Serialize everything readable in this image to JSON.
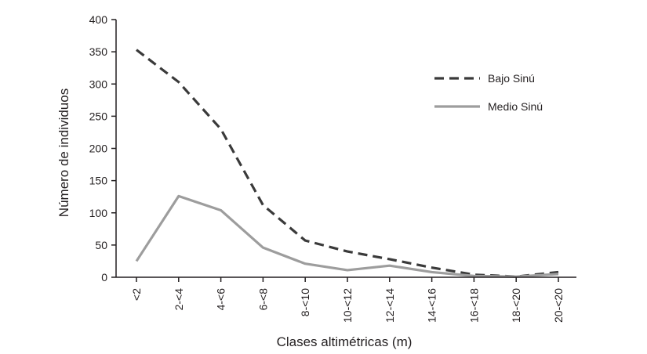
{
  "chart_data": {
    "type": "line",
    "title": "",
    "xlabel": "Clases altimétricas (m)",
    "ylabel": "Número de individuos",
    "categories": [
      "<2",
      "2-<4",
      "4-<6",
      "6-<8",
      "8-<10",
      "10-<12",
      "12-<14",
      "14-<16",
      "16-<18",
      "18-<20",
      "20-<20"
    ],
    "ylim": [
      0,
      400
    ],
    "yticks": [
      0,
      50,
      100,
      150,
      200,
      250,
      300,
      350,
      400
    ],
    "grid": false,
    "legend": "right",
    "series": [
      {
        "name": "Bajo Sinú",
        "color": "#3a3a3a",
        "dash": "dashed",
        "values": [
          353,
          303,
          230,
          112,
          57,
          40,
          28,
          15,
          4,
          1,
          8
        ]
      },
      {
        "name": "Medio Sinú",
        "color": "#9d9d9d",
        "dash": "solid",
        "values": [
          25,
          126,
          104,
          46,
          21,
          11,
          18,
          8,
          2,
          1,
          5
        ]
      }
    ]
  }
}
